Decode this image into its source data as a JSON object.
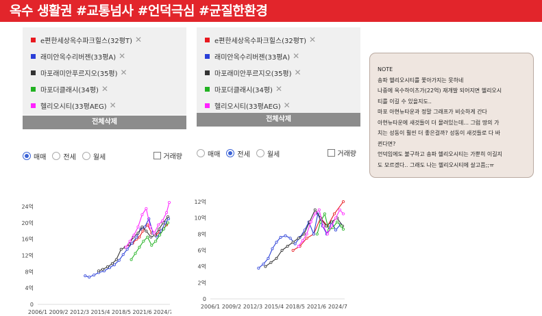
{
  "banner": {
    "text": "옥수 생활권 #교통넘사 #언덕극심 #균질한환경"
  },
  "legend": [
    {
      "label": "e편한세상옥수파크힐스(32평T)",
      "color": "#e8191f"
    },
    {
      "label": "래미안옥수리버젠(33평A)",
      "color": "#2a3fd8"
    },
    {
      "label": "마포래미안푸르지오(35평)",
      "color": "#333333"
    },
    {
      "label": "마포더클래시(34평)",
      "color": "#22b222"
    },
    {
      "label": "헬리오시티(33평AEG)",
      "color": "#ff22ff"
    }
  ],
  "remove_glyph": "✕",
  "clear_button": "전체삭제",
  "radios": [
    "매매",
    "전세",
    "월세"
  ],
  "volume_label": "거래량",
  "panels": [
    {
      "selected": "매매"
    },
    {
      "selected": "전세"
    }
  ],
  "chart_data": [
    {
      "type": "line",
      "deal_type": "매매",
      "x_ticks": [
        "2006/1",
        "2009/2",
        "2012/3",
        "2015/4",
        "2018/5",
        "2021/6",
        "2024/7"
      ],
      "y_ticks": [
        "0",
        "4억",
        "8억",
        "12억",
        "16억",
        "20억",
        "24억"
      ],
      "ylim": [
        0,
        25
      ],
      "xlim": [
        2006.0,
        2025.5
      ],
      "series": [
        {
          "name": "e편한세상옥수파크힐스(32평T)",
          "color": "#e8191f",
          "x": [
            2019.5,
            2020.0,
            2020.6,
            2021.0,
            2021.5,
            2022.2,
            2022.8,
            2023.4,
            2024.0,
            2024.5,
            2025.0
          ],
          "y": [
            14.5,
            15.0,
            16.0,
            16.5,
            18.0,
            19.5,
            17.5,
            17.0,
            17.8,
            18.5,
            19.5
          ]
        },
        {
          "name": "래미안옥수리버젠(33평A)",
          "color": "#2a3fd8",
          "x": [
            2013.0,
            2013.6,
            2014.3,
            2015.0,
            2015.8,
            2016.6,
            2017.3,
            2018.0,
            2018.6,
            2019.2,
            2019.9,
            2020.6,
            2021.2,
            2021.8,
            2022.4,
            2023.0,
            2023.6,
            2024.2,
            2024.8,
            2025.3
          ],
          "y": [
            7.0,
            6.7,
            7.2,
            7.8,
            8.2,
            9.0,
            9.7,
            10.8,
            12.2,
            13.5,
            15.0,
            16.5,
            18.5,
            19.0,
            21.0,
            17.5,
            16.5,
            18.0,
            20.0,
            21.0
          ]
        },
        {
          "name": "마포래미안푸르지오(35평)",
          "color": "#333333",
          "x": [
            2015.0,
            2015.6,
            2016.3,
            2017.0,
            2017.6,
            2018.3,
            2018.9,
            2019.5,
            2020.1,
            2020.8,
            2021.4,
            2022.0,
            2022.7,
            2023.3,
            2023.9,
            2024.5,
            2025.2
          ],
          "y": [
            8.2,
            8.6,
            9.2,
            10.0,
            11.0,
            13.5,
            14.0,
            14.8,
            16.5,
            17.5,
            19.0,
            18.0,
            16.5,
            17.0,
            18.5,
            20.0,
            21.5
          ]
        },
        {
          "name": "마포더클래시(34평)",
          "color": "#22b222",
          "x": [
            2019.8,
            2020.4,
            2021.0,
            2021.6,
            2022.2,
            2022.8,
            2023.4,
            2024.0,
            2024.6,
            2025.2
          ],
          "y": [
            11.0,
            12.5,
            14.0,
            15.5,
            16.5,
            14.5,
            15.5,
            17.0,
            18.5,
            20.0
          ]
        },
        {
          "name": "헬리오시티(33평AEG)",
          "color": "#ff22ff",
          "x": [
            2019.0,
            2019.6,
            2020.2,
            2020.8,
            2021.4,
            2022.0,
            2022.6,
            2023.2,
            2023.8,
            2024.4,
            2025.0,
            2025.4
          ],
          "y": [
            14.0,
            15.5,
            17.0,
            19.0,
            22.0,
            23.5,
            19.0,
            17.5,
            19.5,
            20.5,
            22.5,
            25.0
          ]
        }
      ]
    },
    {
      "type": "line",
      "deal_type": "전세",
      "x_ticks": [
        "2006/1",
        "2009/2",
        "2012/3",
        "2015/4",
        "2018/5",
        "2021/6",
        "2024/7"
      ],
      "y_ticks": [
        "0",
        "2억",
        "4억",
        "6억",
        "8억",
        "10억",
        "12억"
      ],
      "ylim": [
        0,
        12.5
      ],
      "xlim": [
        2006.0,
        2025.5
      ],
      "series": [
        {
          "name": "e편한세상옥수파크힐스(32평T)",
          "color": "#e8191f",
          "x": [
            2018.0,
            2019.0,
            2020.0,
            2021.0,
            2022.0,
            2023.0,
            2024.0,
            2025.3
          ],
          "y": [
            6.0,
            6.5,
            7.5,
            8.0,
            10.0,
            9.0,
            10.5,
            12.0
          ]
        },
        {
          "name": "래미안옥수리버젠(33평A)",
          "color": "#2a3fd8",
          "x": [
            2013.0,
            2013.7,
            2014.4,
            2015.0,
            2015.6,
            2016.2,
            2016.9,
            2017.6,
            2018.3,
            2019.0,
            2019.7,
            2020.3,
            2021.0,
            2021.6,
            2022.3,
            2022.9,
            2023.6,
            2024.2,
            2024.9
          ],
          "y": [
            3.8,
            4.3,
            5.0,
            6.2,
            7.0,
            7.6,
            7.8,
            7.5,
            6.8,
            7.6,
            8.5,
            9.5,
            8.0,
            10.5,
            9.0,
            8.0,
            9.5,
            8.5,
            9.2
          ]
        },
        {
          "name": "마포래미안푸르지오(35평)",
          "color": "#333333",
          "x": [
            2014.0,
            2014.8,
            2015.6,
            2016.4,
            2017.2,
            2018.0,
            2018.8,
            2019.6,
            2020.4,
            2021.2,
            2022.0,
            2022.8,
            2023.6,
            2024.4,
            2025.2
          ],
          "y": [
            4.0,
            4.5,
            5.0,
            6.0,
            6.5,
            7.0,
            7.5,
            8.0,
            9.5,
            11.0,
            10.0,
            9.0,
            9.5,
            10.0,
            9.0
          ]
        },
        {
          "name": "마포더클래시(34평)",
          "color": "#22b222",
          "x": [
            2021.5,
            2022.0,
            2022.6,
            2023.2,
            2023.8,
            2024.4,
            2025.0,
            2025.3
          ],
          "y": [
            8.0,
            9.5,
            10.5,
            8.5,
            8.8,
            9.5,
            9.0,
            8.6
          ]
        },
        {
          "name": "헬리오시티(33평AEG)",
          "color": "#ff22ff",
          "x": [
            2018.8,
            2019.4,
            2020.0,
            2020.6,
            2021.2,
            2021.8,
            2022.4,
            2023.0,
            2023.6,
            2024.2,
            2024.8,
            2025.3
          ],
          "y": [
            6.5,
            7.2,
            8.0,
            9.5,
            10.5,
            11.0,
            9.0,
            8.0,
            9.0,
            10.0,
            11.0,
            10.5
          ]
        }
      ]
    }
  ],
  "note": {
    "lines": [
      "NOTE",
      "송파 헬리오시티를 쫓아가지는 못하네",
      "나중에 옥수하이츠가(22억) 재개발 되어지면 헬리오시",
      "티를 이길 수 있을지도..",
      "마포 아현뉴타운과 정말 그래프가 비슷하게 간다",
      "아현뉴타운에 새것들이 더 몰려있는데... 그럼 땅의 가",
      "치는 성동이 훨씬 더 좋은걸까? 성동이 새것들로 다 바",
      "뀐다면?",
      "언덕임에도 불구하고 송파 헬리오시티는 가뿐히 이길지",
      "도 모르겠다.. 그래도 나는 헬리오시티에 살고픔;;ㅠ"
    ]
  }
}
